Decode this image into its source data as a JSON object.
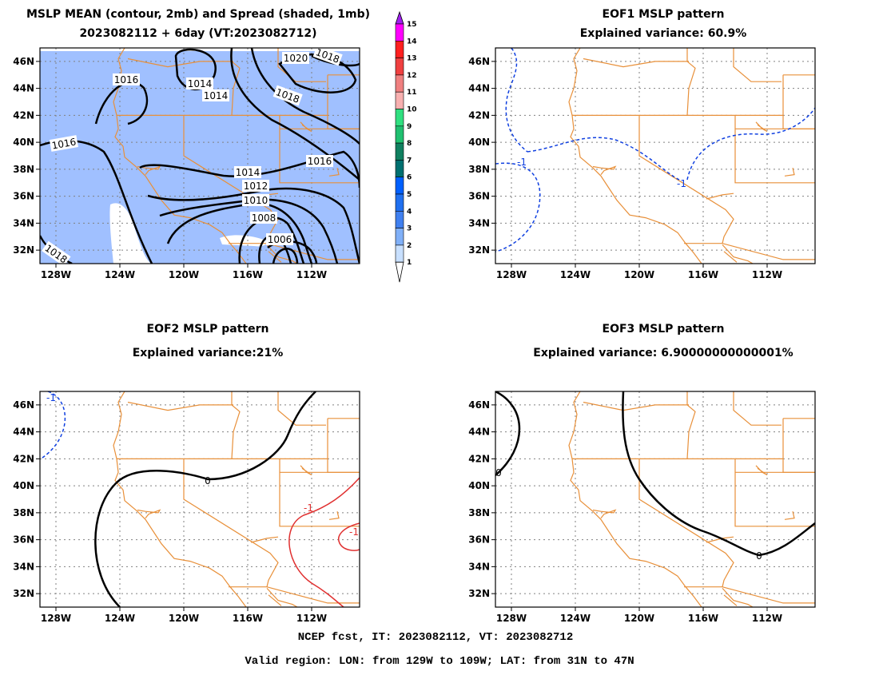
{
  "panels": [
    {
      "id": "mean",
      "title1": "MSLP MEAN (contour, 2mb) and Spread (shaded, 1mb)",
      "title2": "2023082112 + 6day (VT:2023082712)"
    },
    {
      "id": "eof1",
      "title1": "EOF1 MSLP pattern",
      "title2": "Explained variance: 60.9%"
    },
    {
      "id": "eof2",
      "title1": "EOF2 MSLP pattern",
      "title2": "Explained variance:21%"
    },
    {
      "id": "eof3",
      "title1": "EOF3 MSLP pattern",
      "title2": "Explained variance: 6.90000000000001%"
    }
  ],
  "axes": {
    "lat_labels": [
      "46N",
      "44N",
      "42N",
      "40N",
      "38N",
      "36N",
      "34N",
      "32N"
    ],
    "lon_labels": [
      "128W",
      "124W",
      "120W",
      "116W",
      "112W"
    ]
  },
  "colorbar": {
    "labels": [
      "15",
      "14",
      "13",
      "12",
      "11",
      "10",
      "9",
      "8",
      "7",
      "6",
      "5",
      "4",
      "3",
      "2",
      "1"
    ],
    "colors": [
      "#a020f0",
      "#ff00ff",
      "#ff2020",
      "#f04040",
      "#f08080",
      "#f8b0b0",
      "#30e080",
      "#20c070",
      "#108060",
      "#007070",
      "#0060ff",
      "#2070f0",
      "#4080f0",
      "#80b0f8",
      "#c8e0ff"
    ]
  },
  "contour_labels": {
    "mean": [
      "1020",
      "1018",
      "1016",
      "1014",
      "1014",
      "1018",
      "1016",
      "1016",
      "1014",
      "1012",
      "1010",
      "1008",
      "1006",
      "1018"
    ],
    "eof1": [
      "-1",
      "-1"
    ],
    "eof2": [
      "-1",
      "0",
      "-1",
      "-1"
    ],
    "eof3": [
      "0",
      "0"
    ]
  },
  "colors": {
    "border": "#e8903a",
    "spread_fill": "#a0c0ff",
    "neg_contour": "#1040e0",
    "pos_contour": "#e03030",
    "grid": "#808080"
  },
  "footer": {
    "line1": "NCEP fcst, IT: 2023082112, VT: 2023082712",
    "line2": "Valid region: LON: from 129W to 109W; LAT: from 31N to 47N"
  }
}
